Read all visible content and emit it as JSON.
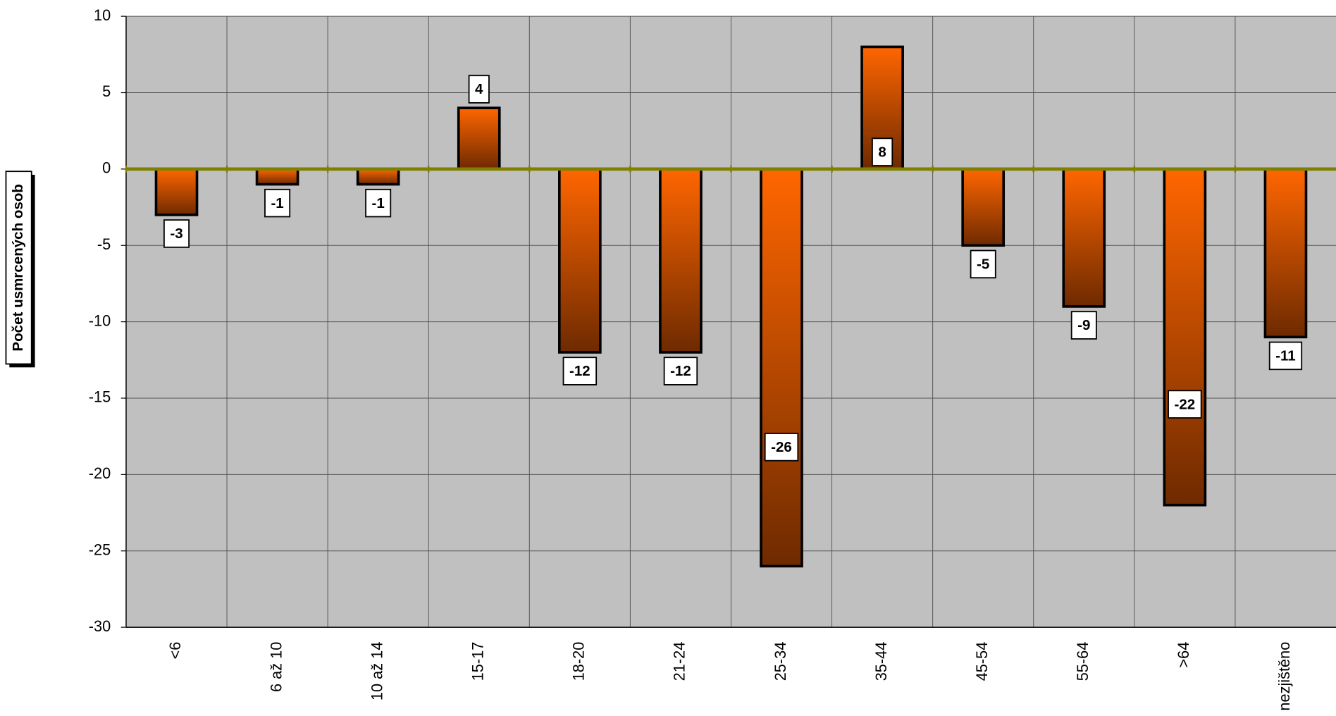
{
  "chart_data": {
    "type": "bar",
    "y_label": "Počet usmrcených osob",
    "categories": [
      "<6",
      "6 až 10",
      "10 až 14",
      "15-17",
      "18-20",
      "21-24",
      "25-34",
      "35-44",
      "45-54",
      "55-64",
      ">64",
      "nezjištěno"
    ],
    "values": [
      -3,
      -1,
      -1,
      4,
      -12,
      -12,
      -26,
      8,
      -5,
      -9,
      -22,
      -11
    ],
    "color": "#ff6600",
    "ylim": [
      -30,
      10
    ],
    "yticks": [
      -30,
      -25,
      -20,
      -15,
      -10,
      -5,
      0,
      5,
      10
    ],
    "grid": true
  }
}
